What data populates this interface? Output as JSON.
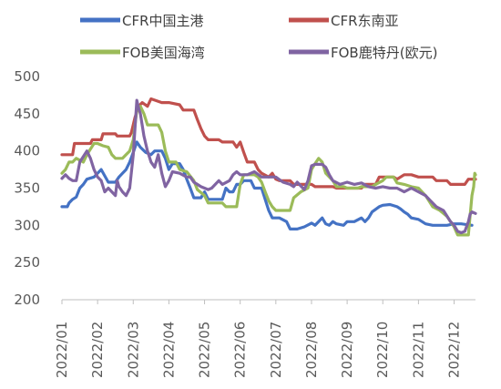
{
  "chart_data": {
    "type": "line",
    "ylim": [
      200,
      500
    ],
    "yticks": [
      200,
      250,
      300,
      350,
      400,
      450,
      500
    ],
    "xlim": [
      0,
      11.6
    ],
    "xticks": [
      {
        "x": 0,
        "label": "2022/01"
      },
      {
        "x": 1,
        "label": "2022/02"
      },
      {
        "x": 2,
        "label": "2022/03"
      },
      {
        "x": 3,
        "label": "2022/04"
      },
      {
        "x": 4,
        "label": "2022/05"
      },
      {
        "x": 5,
        "label": "2022/06"
      },
      {
        "x": 6,
        "label": "2022/07"
      },
      {
        "x": 7,
        "label": "2022/08"
      },
      {
        "x": 8,
        "label": "2022/09"
      },
      {
        "x": 9,
        "label": "2022/10"
      },
      {
        "x": 10,
        "label": "2022/11"
      },
      {
        "x": 11,
        "label": "2022/12"
      }
    ],
    "grid": false,
    "legend_position": "top",
    "series": [
      {
        "name": "CFR中国主港",
        "color": "#4472c4",
        "points": [
          [
            0,
            325
          ],
          [
            0.15,
            325
          ],
          [
            0.2,
            330
          ],
          [
            0.3,
            335
          ],
          [
            0.4,
            338
          ],
          [
            0.5,
            350
          ],
          [
            0.6,
            355
          ],
          [
            0.7,
            362
          ],
          [
            0.9,
            365
          ],
          [
            1.0,
            370
          ],
          [
            1.1,
            375
          ],
          [
            1.3,
            358
          ],
          [
            1.5,
            358
          ],
          [
            1.6,
            365
          ],
          [
            1.7,
            370
          ],
          [
            1.8,
            375
          ],
          [
            1.9,
            385
          ],
          [
            2.0,
            398
          ],
          [
            2.1,
            412
          ],
          [
            2.2,
            405
          ],
          [
            2.35,
            398
          ],
          [
            2.5,
            395
          ],
          [
            2.6,
            400
          ],
          [
            2.8,
            400
          ],
          [
            2.9,
            390
          ],
          [
            3.0,
            375
          ],
          [
            3.1,
            383
          ],
          [
            3.3,
            383
          ],
          [
            3.4,
            375
          ],
          [
            3.5,
            362
          ],
          [
            3.6,
            350
          ],
          [
            3.7,
            337
          ],
          [
            3.9,
            337
          ],
          [
            4.0,
            345
          ],
          [
            4.1,
            335
          ],
          [
            4.5,
            335
          ],
          [
            4.6,
            350
          ],
          [
            4.7,
            345
          ],
          [
            4.8,
            345
          ],
          [
            4.9,
            355
          ],
          [
            5.0,
            355
          ],
          [
            5.1,
            360
          ],
          [
            5.3,
            360
          ],
          [
            5.4,
            350
          ],
          [
            5.6,
            350
          ],
          [
            5.7,
            335
          ],
          [
            5.8,
            320
          ],
          [
            5.9,
            310
          ],
          [
            6.1,
            310
          ],
          [
            6.3,
            305
          ],
          [
            6.4,
            295
          ],
          [
            6.6,
            295
          ],
          [
            6.8,
            298
          ],
          [
            7.0,
            303
          ],
          [
            7.1,
            300
          ],
          [
            7.2,
            305
          ],
          [
            7.3,
            310
          ],
          [
            7.4,
            302
          ],
          [
            7.5,
            300
          ],
          [
            7.6,
            305
          ],
          [
            7.7,
            302
          ],
          [
            7.9,
            300
          ],
          [
            8.0,
            305
          ],
          [
            8.2,
            305
          ],
          [
            8.4,
            310
          ],
          [
            8.5,
            305
          ],
          [
            8.6,
            310
          ],
          [
            8.7,
            318
          ],
          [
            8.9,
            325
          ],
          [
            9.0,
            327
          ],
          [
            9.2,
            328
          ],
          [
            9.4,
            325
          ],
          [
            9.5,
            322
          ],
          [
            9.6,
            318
          ],
          [
            9.7,
            315
          ],
          [
            9.8,
            310
          ],
          [
            10.0,
            308
          ],
          [
            10.2,
            302
          ],
          [
            10.4,
            300
          ],
          [
            10.6,
            300
          ],
          [
            10.8,
            300
          ],
          [
            11.0,
            302
          ],
          [
            11.2,
            302
          ],
          [
            11.5,
            300
          ]
        ]
      },
      {
        "name": "CFR东南亚",
        "color": "#c0504d",
        "points": [
          [
            0,
            395
          ],
          [
            0.3,
            395
          ],
          [
            0.35,
            410
          ],
          [
            0.8,
            410
          ],
          [
            0.85,
            415
          ],
          [
            1.1,
            415
          ],
          [
            1.15,
            423
          ],
          [
            1.5,
            423
          ],
          [
            1.55,
            420
          ],
          [
            1.9,
            420
          ],
          [
            1.95,
            425
          ],
          [
            2.05,
            445
          ],
          [
            2.15,
            460
          ],
          [
            2.25,
            465
          ],
          [
            2.4,
            460
          ],
          [
            2.5,
            470
          ],
          [
            2.8,
            465
          ],
          [
            3.0,
            465
          ],
          [
            3.3,
            462
          ],
          [
            3.4,
            455
          ],
          [
            3.7,
            455
          ],
          [
            3.8,
            442
          ],
          [
            3.9,
            430
          ],
          [
            4.0,
            420
          ],
          [
            4.1,
            415
          ],
          [
            4.4,
            415
          ],
          [
            4.5,
            412
          ],
          [
            4.8,
            412
          ],
          [
            4.9,
            405
          ],
          [
            5.0,
            412
          ],
          [
            5.1,
            398
          ],
          [
            5.2,
            385
          ],
          [
            5.4,
            385
          ],
          [
            5.5,
            375
          ],
          [
            5.6,
            370
          ],
          [
            5.8,
            365
          ],
          [
            5.9,
            370
          ],
          [
            6.0,
            362
          ],
          [
            6.1,
            360
          ],
          [
            6.4,
            360
          ],
          [
            6.5,
            355
          ],
          [
            7.0,
            355
          ],
          [
            7.1,
            352
          ],
          [
            7.6,
            352
          ],
          [
            7.7,
            350
          ],
          [
            8.4,
            350
          ],
          [
            8.5,
            355
          ],
          [
            8.8,
            355
          ],
          [
            8.9,
            365
          ],
          [
            9.3,
            365
          ],
          [
            9.4,
            362
          ],
          [
            9.6,
            368
          ],
          [
            9.8,
            368
          ],
          [
            10.0,
            365
          ],
          [
            10.4,
            365
          ],
          [
            10.5,
            360
          ],
          [
            10.8,
            360
          ],
          [
            10.9,
            355
          ],
          [
            11.3,
            355
          ],
          [
            11.4,
            362
          ],
          [
            11.6,
            362
          ]
        ]
      },
      {
        "name": "FOB美国海湾",
        "color": "#9bbb59",
        "points": [
          [
            0,
            370
          ],
          [
            0.1,
            375
          ],
          [
            0.2,
            385
          ],
          [
            0.3,
            385
          ],
          [
            0.4,
            390
          ],
          [
            0.6,
            385
          ],
          [
            0.7,
            395
          ],
          [
            0.9,
            410
          ],
          [
            1.0,
            410
          ],
          [
            1.15,
            407
          ],
          [
            1.3,
            405
          ],
          [
            1.4,
            395
          ],
          [
            1.5,
            390
          ],
          [
            1.7,
            390
          ],
          [
            1.8,
            395
          ],
          [
            1.9,
            400
          ],
          [
            2.0,
            415
          ],
          [
            2.1,
            455
          ],
          [
            2.2,
            460
          ],
          [
            2.3,
            450
          ],
          [
            2.4,
            435
          ],
          [
            2.7,
            435
          ],
          [
            2.8,
            425
          ],
          [
            2.9,
            400
          ],
          [
            3.0,
            385
          ],
          [
            3.2,
            385
          ],
          [
            3.3,
            375
          ],
          [
            3.5,
            372
          ],
          [
            3.7,
            360
          ],
          [
            3.8,
            348
          ],
          [
            4.0,
            340
          ],
          [
            4.1,
            330
          ],
          [
            4.5,
            330
          ],
          [
            4.6,
            325
          ],
          [
            4.9,
            325
          ],
          [
            5.0,
            355
          ],
          [
            5.1,
            368
          ],
          [
            5.2,
            368
          ],
          [
            5.4,
            368
          ],
          [
            5.5,
            365
          ],
          [
            5.6,
            358
          ],
          [
            5.7,
            345
          ],
          [
            5.8,
            333
          ],
          [
            5.9,
            325
          ],
          [
            6.0,
            320
          ],
          [
            6.4,
            320
          ],
          [
            6.5,
            337
          ],
          [
            6.7,
            345
          ],
          [
            6.9,
            350
          ],
          [
            7.0,
            375
          ],
          [
            7.1,
            383
          ],
          [
            7.2,
            390
          ],
          [
            7.3,
            385
          ],
          [
            7.4,
            370
          ],
          [
            7.6,
            360
          ],
          [
            7.7,
            352
          ],
          [
            7.9,
            352
          ],
          [
            8.0,
            350
          ],
          [
            8.3,
            350
          ],
          [
            8.4,
            352
          ],
          [
            8.7,
            352
          ],
          [
            8.8,
            355
          ],
          [
            9.0,
            360
          ],
          [
            9.1,
            365
          ],
          [
            9.3,
            365
          ],
          [
            9.4,
            357
          ],
          [
            9.6,
            355
          ],
          [
            9.8,
            352
          ],
          [
            10.0,
            350
          ],
          [
            10.2,
            340
          ],
          [
            10.4,
            325
          ],
          [
            10.6,
            320
          ],
          [
            10.8,
            312
          ],
          [
            11.0,
            298
          ],
          [
            11.1,
            287
          ],
          [
            11.4,
            287
          ],
          [
            11.5,
            340
          ],
          [
            11.55,
            352
          ],
          [
            11.58,
            370
          ],
          [
            11.6,
            368
          ]
        ]
      },
      {
        "name": "FOB鹿特丹(欧元)",
        "color": "#8064a2",
        "points": [
          [
            0,
            363
          ],
          [
            0.1,
            368
          ],
          [
            0.2,
            363
          ],
          [
            0.3,
            360
          ],
          [
            0.4,
            360
          ],
          [
            0.5,
            385
          ],
          [
            0.7,
            400
          ],
          [
            0.8,
            390
          ],
          [
            0.9,
            375
          ],
          [
            1.0,
            365
          ],
          [
            1.1,
            360
          ],
          [
            1.2,
            345
          ],
          [
            1.3,
            350
          ],
          [
            1.4,
            345
          ],
          [
            1.5,
            340
          ],
          [
            1.55,
            360
          ],
          [
            1.6,
            352
          ],
          [
            1.7,
            345
          ],
          [
            1.8,
            340
          ],
          [
            1.9,
            350
          ],
          [
            2.0,
            395
          ],
          [
            2.1,
            468
          ],
          [
            2.15,
            458
          ],
          [
            2.2,
            450
          ],
          [
            2.3,
            420
          ],
          [
            2.4,
            400
          ],
          [
            2.5,
            385
          ],
          [
            2.6,
            378
          ],
          [
            2.7,
            395
          ],
          [
            2.8,
            370
          ],
          [
            2.9,
            352
          ],
          [
            3.0,
            360
          ],
          [
            3.1,
            372
          ],
          [
            3.3,
            370
          ],
          [
            3.5,
            365
          ],
          [
            3.6,
            365
          ],
          [
            3.7,
            358
          ],
          [
            3.8,
            355
          ],
          [
            3.9,
            352
          ],
          [
            4.1,
            348
          ],
          [
            4.2,
            350
          ],
          [
            4.4,
            360
          ],
          [
            4.5,
            355
          ],
          [
            4.7,
            360
          ],
          [
            4.8,
            368
          ],
          [
            4.9,
            372
          ],
          [
            5.0,
            368
          ],
          [
            5.2,
            368
          ],
          [
            5.4,
            372
          ],
          [
            5.6,
            365
          ],
          [
            5.8,
            365
          ],
          [
            6.0,
            365
          ],
          [
            6.2,
            358
          ],
          [
            6.4,
            355
          ],
          [
            6.5,
            352
          ],
          [
            6.6,
            358
          ],
          [
            6.8,
            348
          ],
          [
            6.9,
            360
          ],
          [
            7.0,
            380
          ],
          [
            7.1,
            382
          ],
          [
            7.3,
            382
          ],
          [
            7.4,
            378
          ],
          [
            7.5,
            368
          ],
          [
            7.6,
            360
          ],
          [
            7.8,
            355
          ],
          [
            8.0,
            358
          ],
          [
            8.2,
            355
          ],
          [
            8.4,
            357
          ],
          [
            8.6,
            352
          ],
          [
            8.8,
            350
          ],
          [
            9.0,
            352
          ],
          [
            9.2,
            350
          ],
          [
            9.4,
            350
          ],
          [
            9.6,
            345
          ],
          [
            9.8,
            350
          ],
          [
            10.0,
            345
          ],
          [
            10.2,
            340
          ],
          [
            10.3,
            335
          ],
          [
            10.5,
            325
          ],
          [
            10.7,
            320
          ],
          [
            10.9,
            305
          ],
          [
            11.0,
            300
          ],
          [
            11.1,
            292
          ],
          [
            11.2,
            290
          ],
          [
            11.3,
            292
          ],
          [
            11.4,
            305
          ],
          [
            11.45,
            315
          ],
          [
            11.5,
            318
          ],
          [
            11.6,
            316
          ]
        ]
      }
    ]
  }
}
